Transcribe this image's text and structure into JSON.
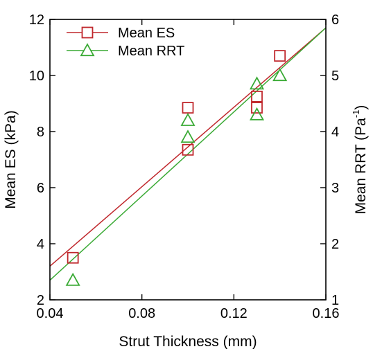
{
  "chart_data": {
    "type": "scatter",
    "xlabel": "Strut Thickness (mm)",
    "ylabel_left": "Mean ES (kPa)",
    "ylabel_right": "Mean RRT (Pa",
    "ylabel_right_sup": "-1",
    "ylabel_right_close": ")",
    "xlim": [
      0.04,
      0.16
    ],
    "ylim_left": [
      2,
      12
    ],
    "ylim_right": [
      1,
      6
    ],
    "x_ticks": [
      0.04,
      0.08,
      0.12,
      0.16
    ],
    "x_tick_labels": [
      "0.04",
      "0.08",
      "0.12",
      "0.16"
    ],
    "y_left_ticks": [
      2,
      4,
      6,
      8,
      10,
      12
    ],
    "y_left_tick_labels": [
      "2",
      "4",
      "6",
      "8",
      "10",
      "12"
    ],
    "y_right_ticks": [
      1,
      2,
      3,
      4,
      5,
      6
    ],
    "y_right_tick_labels": [
      "1",
      "2",
      "3",
      "4",
      "5",
      "6"
    ],
    "grid": false,
    "legend_position": "top-left",
    "series": [
      {
        "name": "Mean ES",
        "axis": "left",
        "marker": "square",
        "color": "#c0282d",
        "points": [
          {
            "x": 0.05,
            "y": 3.5
          },
          {
            "x": 0.1,
            "y": 8.85
          },
          {
            "x": 0.1,
            "y": 7.35
          },
          {
            "x": 0.13,
            "y": 9.25
          },
          {
            "x": 0.13,
            "y": 8.85
          },
          {
            "x": 0.14,
            "y": 10.7
          }
        ],
        "fit": {
          "x": [
            0.04,
            0.16
          ],
          "y": [
            3.2,
            11.7
          ]
        }
      },
      {
        "name": "Mean RRT",
        "axis": "right",
        "marker": "triangle",
        "color": "#3aaa35",
        "points": [
          {
            "x": 0.05,
            "y": 1.35
          },
          {
            "x": 0.1,
            "y": 4.2
          },
          {
            "x": 0.1,
            "y": 3.9
          },
          {
            "x": 0.13,
            "y": 4.85
          },
          {
            "x": 0.13,
            "y": 4.3
          },
          {
            "x": 0.14,
            "y": 5.0
          }
        ],
        "fit": {
          "x": [
            0.04,
            0.16
          ],
          "y": [
            1.35,
            5.85
          ]
        }
      }
    ]
  }
}
